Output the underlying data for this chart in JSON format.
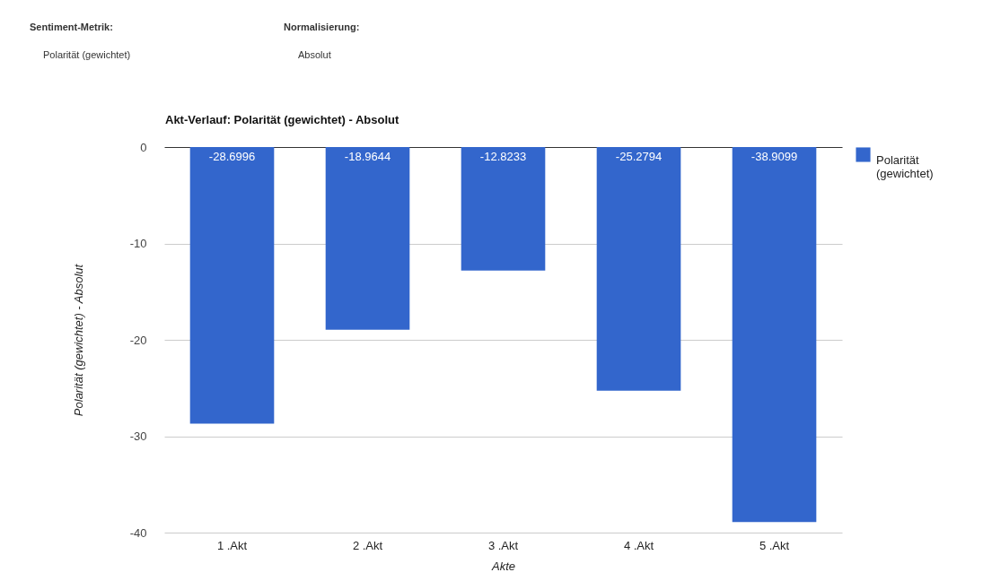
{
  "chart_data": {
    "type": "bar",
    "title": "Akt-Verlauf: Polarität (gewichtet) - Absolut",
    "xlabel": "Akte",
    "ylabel": "Polarität (gewichtet) - Absolut",
    "categories": [
      "1 .Akt",
      "2 .Akt",
      "3 .Akt",
      "4 .Akt",
      "5 .Akt"
    ],
    "series": [
      {
        "name": "Polarität (gewichtet)",
        "color": "#3366cc",
        "values": [
          -28.6996,
          -18.9644,
          -12.8233,
          -25.2794,
          -38.9099
        ]
      }
    ],
    "ylim": [
      -40,
      0
    ],
    "yticks": [
      -40,
      -30,
      -20,
      -10,
      0
    ],
    "grid": "y",
    "legend": "right",
    "data_labels": true,
    "annotations": [
      "Sentiment-Metrik:",
      "Polarität (gewichtet)",
      "Normalisierung:",
      "Absolut"
    ]
  }
}
